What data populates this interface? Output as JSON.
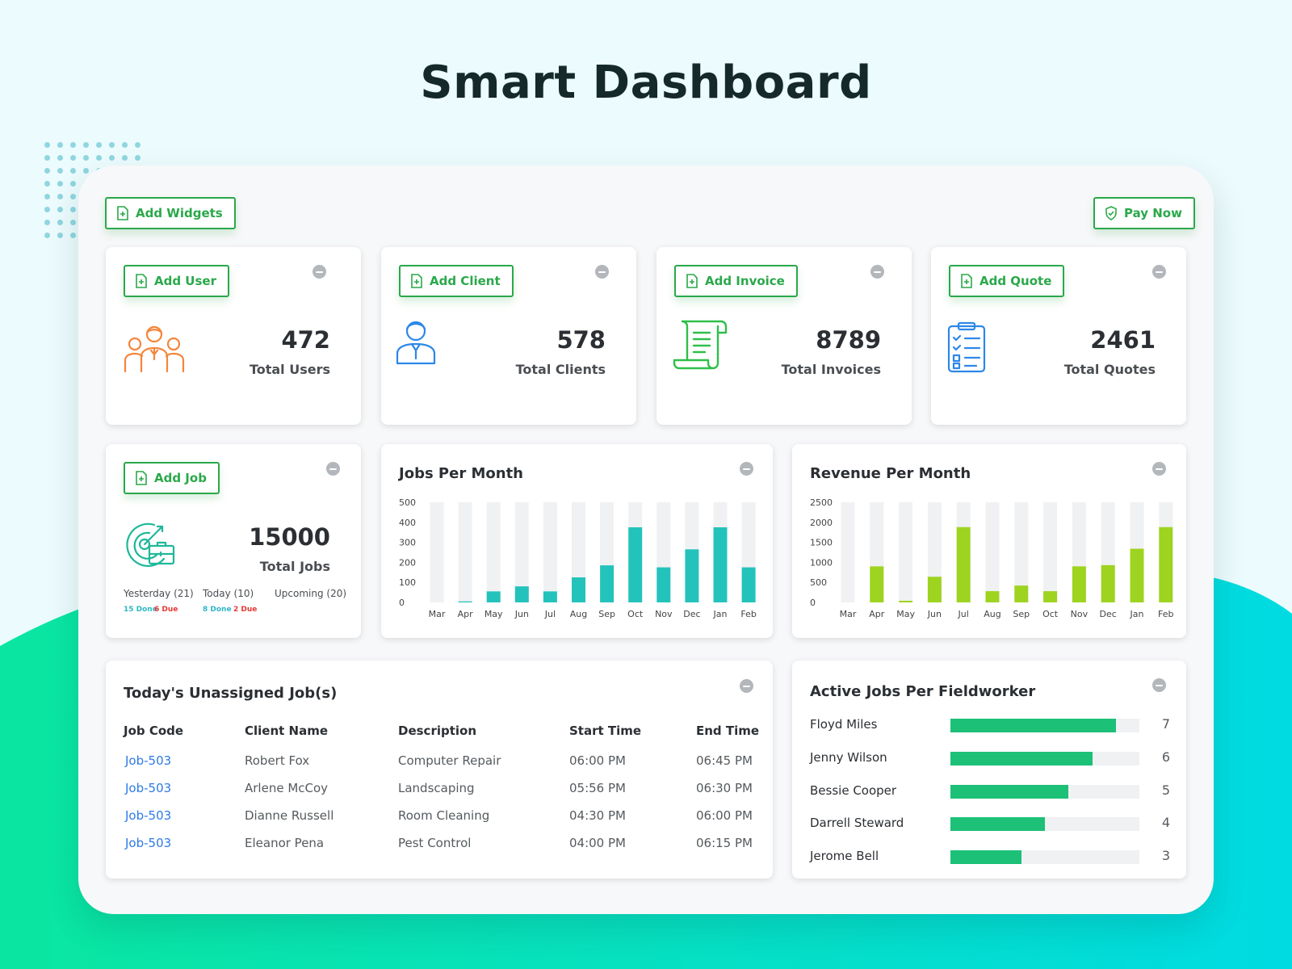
{
  "page": {
    "title": "Smart Dashboard"
  },
  "toolbar": {
    "add_widgets_label": "Add Widgets",
    "pay_now_label": "Pay Now"
  },
  "colors": {
    "accent_green": "#2aa84a",
    "teal": "#23c3bc",
    "lime": "#9ed320",
    "fieldworker_bar": "#1dc077",
    "link_blue": "#2d7be5",
    "due_red": "#e53935",
    "done_teal": "#2fb7c6"
  },
  "stats": [
    {
      "button_label": "Add User",
      "value": "472",
      "label": "Total Users",
      "icon": "users-group-icon"
    },
    {
      "button_label": "Add Client",
      "value": "578",
      "label": "Total Clients",
      "icon": "client-icon"
    },
    {
      "button_label": "Add Invoice",
      "value": "8789",
      "label": "Total Invoices",
      "icon": "invoice-scroll-icon"
    },
    {
      "button_label": "Add Quote",
      "value": "2461",
      "label": "Total Quotes",
      "icon": "clipboard-checklist-icon"
    }
  ],
  "jobs": {
    "button_label": "Add Job",
    "value": "15000",
    "label": "Total Jobs",
    "icon": "target-briefcase-icon",
    "yesterday": {
      "label": "Yesterday (21)",
      "done": "15 Done",
      "due": "6 Due"
    },
    "today": {
      "label": "Today (10)",
      "done": "8 Done",
      "due": "2 Due"
    },
    "upcoming": {
      "label": "Upcoming (20)"
    }
  },
  "chart_data": [
    {
      "type": "bar",
      "title": "Jobs Per Month",
      "categories": [
        "Mar",
        "Apr",
        "May",
        "Jun",
        "Jul",
        "Aug",
        "Sep",
        "Oct",
        "Nov",
        "Dec",
        "Jan",
        "Feb"
      ],
      "values": [
        0,
        5,
        55,
        80,
        55,
        125,
        185,
        375,
        175,
        265,
        375,
        175
      ],
      "ylim": [
        0,
        500
      ],
      "yticks": [
        0,
        100,
        200,
        300,
        400,
        500
      ],
      "background_bars": true,
      "grid": false
    },
    {
      "type": "bar",
      "title": "Revenue Per Month",
      "categories": [
        "Mar",
        "Apr",
        "May",
        "Jun",
        "Jul",
        "Aug",
        "Sep",
        "Oct",
        "Nov",
        "Dec",
        "Jan",
        "Feb"
      ],
      "values": [
        0,
        900,
        40,
        640,
        1880,
        280,
        420,
        280,
        900,
        930,
        1340,
        1880
      ],
      "ylim": [
        0,
        2500
      ],
      "yticks": [
        0,
        500,
        1000,
        1500,
        2000,
        2500
      ],
      "background_bars": true,
      "grid": false
    }
  ],
  "unassigned": {
    "title": "Today's Unassigned Job(s)",
    "columns": [
      "Job Code",
      "Client Name",
      "Description",
      "Start Time",
      "End Time"
    ],
    "rows": [
      [
        "Job-503",
        "Robert Fox",
        "Computer Repair",
        "06:00 PM",
        "06:45 PM"
      ],
      [
        "Job-503",
        "Arlene McCoy",
        "Landscaping",
        "05:56 PM",
        "06:30 PM"
      ],
      [
        "Job-503",
        "Dianne Russell",
        "Room Cleaning",
        "04:30 PM",
        "06:00 PM"
      ],
      [
        "Job-503",
        "Eleanor Pena",
        "Pest Control",
        "04:00 PM",
        "06:15 PM"
      ]
    ]
  },
  "fieldworkers": {
    "title": "Active Jobs Per Fieldworker",
    "max": 8,
    "items": [
      {
        "name": "Floyd Miles",
        "count": 7
      },
      {
        "name": "Jenny Wilson",
        "count": 6
      },
      {
        "name": "Bessie Cooper",
        "count": 5
      },
      {
        "name": "Darrell Steward",
        "count": 4
      },
      {
        "name": "Jerome Bell",
        "count": 3
      }
    ]
  }
}
